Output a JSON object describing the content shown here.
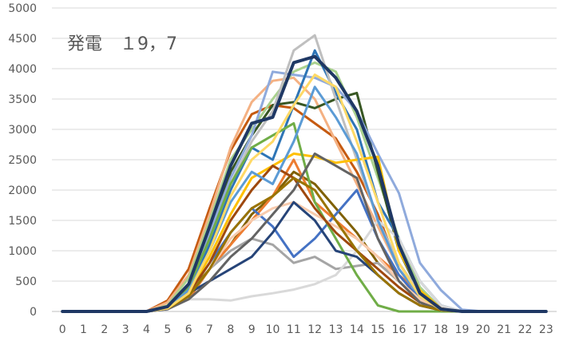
{
  "chart_data": {
    "type": "line",
    "title": "発電　１9，7",
    "xlabel": "",
    "ylabel": "",
    "x": [
      "0",
      "1",
      "2",
      "3",
      "4",
      "5",
      "6",
      "7",
      "8",
      "9",
      "10",
      "11",
      "12",
      "13",
      "14",
      "15",
      "16",
      "17",
      "18",
      "19",
      "20",
      "21",
      "22",
      "23"
    ],
    "ylim": [
      0,
      5000
    ],
    "yticks": [
      0,
      500,
      1000,
      1500,
      2000,
      2500,
      3000,
      3500,
      4000,
      4500,
      5000
    ],
    "grid": true,
    "legend": "none",
    "series": [
      {
        "color": "#C55A11",
        "values": [
          0,
          0,
          0,
          0,
          0,
          180,
          700,
          1700,
          2650,
          3250,
          3400,
          3350,
          3100,
          2850,
          2300,
          1600,
          700,
          250,
          40,
          0,
          0,
          0,
          0,
          0
        ]
      },
      {
        "color": "#F4B183",
        "values": [
          0,
          0,
          0,
          0,
          0,
          150,
          600,
          1600,
          2700,
          3450,
          3800,
          3850,
          3500,
          2800,
          2100,
          1400,
          700,
          250,
          40,
          0,
          0,
          0,
          0,
          0
        ]
      },
      {
        "color": "#A9D18E",
        "values": [
          0,
          0,
          0,
          0,
          0,
          100,
          550,
          1500,
          2500,
          3000,
          3500,
          3950,
          4100,
          3950,
          3200,
          2200,
          1200,
          400,
          50,
          0,
          0,
          0,
          0,
          0
        ]
      },
      {
        "color": "#385723",
        "values": [
          0,
          0,
          0,
          0,
          0,
          80,
          450,
          1300,
          2300,
          2900,
          3400,
          3450,
          3350,
          3500,
          3600,
          2300,
          1000,
          300,
          40,
          0,
          0,
          0,
          0,
          0
        ]
      },
      {
        "color": "#8FAADC",
        "values": [
          0,
          0,
          0,
          0,
          0,
          80,
          400,
          1300,
          2200,
          2900,
          3950,
          3900,
          3850,
          3700,
          3300,
          2600,
          1950,
          800,
          350,
          30,
          0,
          0,
          0,
          0
        ]
      },
      {
        "color": "#2E75B6",
        "values": [
          0,
          0,
          0,
          0,
          0,
          60,
          350,
          1100,
          2000,
          2700,
          2500,
          3400,
          4300,
          3600,
          3000,
          1800,
          1200,
          500,
          100,
          0,
          0,
          0,
          0,
          0
        ]
      },
      {
        "color": "#BFBFBF",
        "values": [
          0,
          0,
          0,
          0,
          0,
          70,
          400,
          1200,
          2100,
          2800,
          3300,
          4300,
          4550,
          3500,
          2500,
          1500,
          800,
          300,
          40,
          0,
          0,
          0,
          0,
          0
        ]
      },
      {
        "color": "#FFC000",
        "values": [
          0,
          0,
          0,
          0,
          0,
          60,
          300,
          900,
          1600,
          2200,
          2400,
          2600,
          2550,
          2450,
          2500,
          2550,
          1000,
          350,
          50,
          0,
          0,
          0,
          0,
          0
        ]
      },
      {
        "color": "#7F6000",
        "values": [
          0,
          0,
          0,
          0,
          0,
          40,
          300,
          700,
          1100,
          1600,
          1900,
          2300,
          2100,
          1700,
          1300,
          800,
          500,
          200,
          30,
          0,
          0,
          0,
          0,
          0
        ]
      },
      {
        "color": "#ED7D31",
        "values": [
          0,
          0,
          0,
          0,
          0,
          50,
          200,
          700,
          1100,
          1500,
          1900,
          2500,
          1800,
          1500,
          1200,
          900,
          600,
          300,
          50,
          0,
          0,
          0,
          0,
          0
        ]
      },
      {
        "color": "#4472C4",
        "values": [
          0,
          0,
          0,
          0,
          0,
          50,
          300,
          800,
          1300,
          1700,
          1400,
          900,
          1200,
          1600,
          2000,
          1200,
          600,
          200,
          30,
          0,
          0,
          0,
          0,
          0
        ]
      },
      {
        "color": "#A5A5A5",
        "values": [
          0,
          0,
          0,
          0,
          0,
          60,
          250,
          700,
          1000,
          1200,
          1100,
          800,
          900,
          700,
          750,
          800,
          500,
          200,
          30,
          0,
          0,
          0,
          0,
          0
        ]
      },
      {
        "color": "#D9D9D9",
        "values": [
          0,
          0,
          0,
          0,
          0,
          30,
          200,
          200,
          180,
          250,
          300,
          360,
          450,
          600,
          1000,
          1500,
          1200,
          500,
          100,
          0,
          0,
          0,
          0,
          0
        ]
      },
      {
        "color": "#70AD47",
        "values": [
          0,
          0,
          0,
          0,
          0,
          60,
          400,
          1200,
          2100,
          2700,
          2900,
          3100,
          1800,
          1200,
          600,
          100,
          0,
          0,
          0,
          0,
          0,
          0,
          0,
          0
        ]
      },
      {
        "color": "#F8CBAD",
        "values": [
          0,
          0,
          0,
          0,
          0,
          50,
          250,
          700,
          1200,
          1500,
          1700,
          1800,
          1600,
          1400,
          1200,
          900,
          500,
          200,
          30,
          0,
          0,
          0,
          0,
          0
        ]
      },
      {
        "color": "#264478",
        "values": [
          0,
          0,
          0,
          0,
          0,
          40,
          300,
          500,
          700,
          900,
          1300,
          1800,
          1500,
          1000,
          900,
          600,
          300,
          100,
          20,
          0,
          0,
          0,
          0,
          0
        ]
      },
      {
        "color": "#9E480E",
        "values": [
          0,
          0,
          0,
          0,
          0,
          50,
          300,
          800,
          1500,
          2000,
          2400,
          2200,
          1700,
          1300,
          1000,
          700,
          400,
          150,
          20,
          0,
          0,
          0,
          0,
          0
        ]
      },
      {
        "color": "#636363",
        "values": [
          0,
          0,
          0,
          0,
          0,
          40,
          200,
          500,
          900,
          1200,
          1600,
          2000,
          2600,
          2400,
          2200,
          1200,
          500,
          150,
          20,
          0,
          0,
          0,
          0,
          0
        ]
      },
      {
        "color": "#997300",
        "values": [
          0,
          0,
          0,
          0,
          0,
          50,
          250,
          700,
          1300,
          1700,
          1900,
          2200,
          2000,
          1500,
          1000,
          600,
          300,
          100,
          20,
          0,
          0,
          0,
          0,
          0
        ]
      },
      {
        "color": "#5B9BD5",
        "values": [
          0,
          0,
          0,
          0,
          0,
          60,
          350,
          1000,
          1800,
          2300,
          2100,
          2800,
          3700,
          3200,
          2600,
          1500,
          700,
          250,
          30,
          0,
          0,
          0,
          0,
          0
        ]
      },
      {
        "color": "#FFD966",
        "values": [
          0,
          0,
          0,
          0,
          0,
          50,
          300,
          1000,
          1900,
          2500,
          2800,
          3400,
          3900,
          3700,
          2800,
          1800,
          800,
          250,
          30,
          0,
          0,
          0,
          0,
          0
        ]
      },
      {
        "color": "#1F3864",
        "values": [
          0,
          0,
          0,
          0,
          0,
          80,
          450,
          1400,
          2400,
          3100,
          3200,
          4100,
          4200,
          3850,
          3300,
          2400,
          1100,
          300,
          40,
          0,
          0,
          0,
          0,
          0
        ]
      }
    ]
  }
}
